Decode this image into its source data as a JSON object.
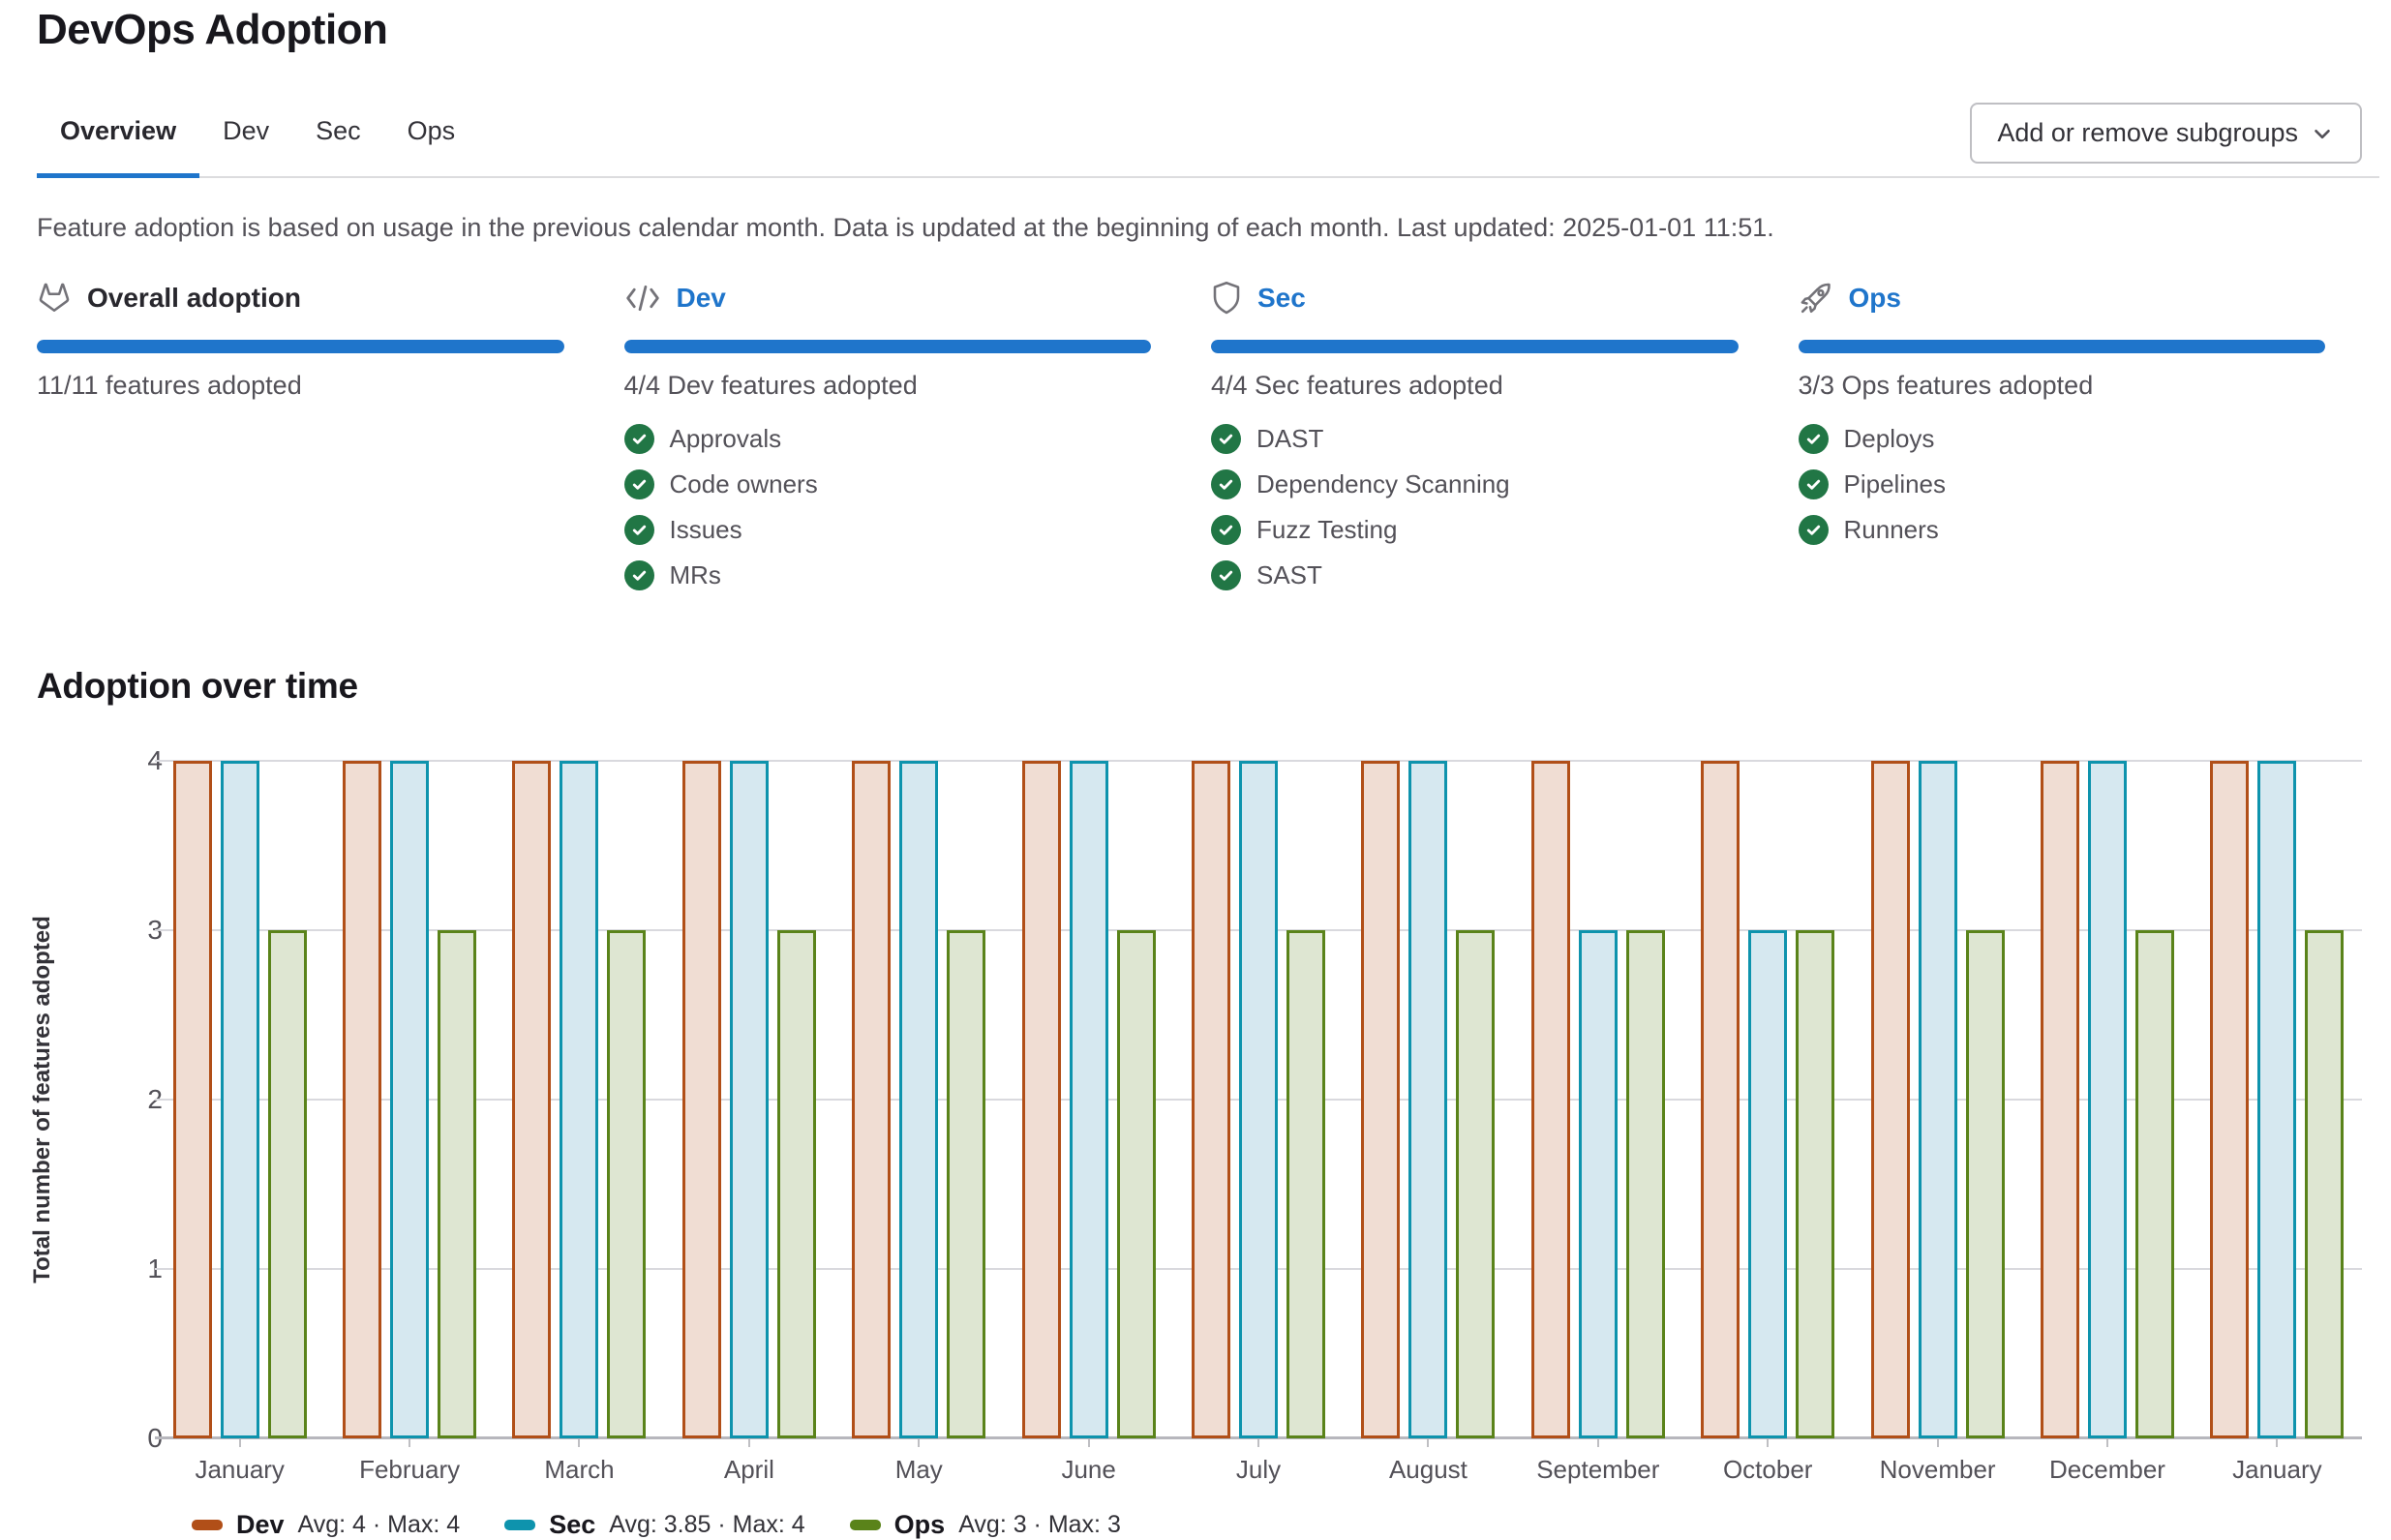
{
  "page": {
    "title": "DevOps Adoption"
  },
  "tabs": [
    {
      "label": "Overview",
      "active": true
    },
    {
      "label": "Dev",
      "active": false
    },
    {
      "label": "Sec",
      "active": false
    },
    {
      "label": "Ops",
      "active": false
    }
  ],
  "toolbar": {
    "add_remove_label": "Add or remove subgroups",
    "chevron_icon": "chevron-down-icon"
  },
  "info_text": "Feature adoption is based on usage in the previous calendar month. Data is updated at the beginning of each month. Last updated: 2025-01-01 11:51.",
  "cards": [
    {
      "title": "Overall adoption",
      "icon": "tanuki-icon",
      "link": false,
      "progress_percent": 100,
      "summary": "11/11 features adopted",
      "features": []
    },
    {
      "title": "Dev",
      "icon": "code-icon",
      "link": true,
      "progress_percent": 100,
      "summary": "4/4 Dev features adopted",
      "features": [
        "Approvals",
        "Code owners",
        "Issues",
        "MRs"
      ]
    },
    {
      "title": "Sec",
      "icon": "shield-icon",
      "link": true,
      "progress_percent": 100,
      "summary": "4/4 Sec features adopted",
      "features": [
        "DAST",
        "Dependency Scanning",
        "Fuzz Testing",
        "SAST"
      ]
    },
    {
      "title": "Ops",
      "icon": "rocket-icon",
      "link": true,
      "progress_percent": 100,
      "summary": "3/3 Ops features adopted",
      "features": [
        "Deploys",
        "Pipelines",
        "Runners"
      ]
    }
  ],
  "chart_section": {
    "title": "Adoption over time"
  },
  "chart_data": {
    "type": "bar",
    "title": "Adoption over time",
    "categories": [
      "January",
      "February",
      "March",
      "April",
      "May",
      "June",
      "July",
      "August",
      "September",
      "October",
      "November",
      "December",
      "January"
    ],
    "series": [
      {
        "name": "Dev",
        "values": [
          4,
          4,
          4,
          4,
          4,
          4,
          4,
          4,
          4,
          4,
          4,
          4,
          4
        ],
        "stroke": "#b14f18",
        "fill": "#f0ddd3",
        "legend_stats": "Avg: 4 · Max: 4"
      },
      {
        "name": "Sec",
        "values": [
          4,
          4,
          4,
          4,
          4,
          4,
          4,
          4,
          3,
          3,
          4,
          4,
          4
        ],
        "stroke": "#0e93ad",
        "fill": "#d6e8f0",
        "legend_stats": "Avg: 3.85 · Max: 4"
      },
      {
        "name": "Ops",
        "values": [
          3,
          3,
          3,
          3,
          3,
          3,
          3,
          3,
          3,
          3,
          3,
          3,
          3
        ],
        "stroke": "#5a831a",
        "fill": "#dee6d2",
        "legend_stats": "Avg: 3 · Max: 3"
      }
    ],
    "xlabel": "",
    "ylabel": "Total number of features adopted",
    "yticks": [
      0,
      1,
      2,
      3,
      4
    ],
    "ylim": [
      0,
      4
    ],
    "grid": true,
    "legend_position": "bottom"
  },
  "colors": {
    "accent_blue": "#1f75cb",
    "progress_blue": "#1f75cb",
    "check_green": "#217645",
    "icon_gray": "#737278",
    "grid_gray": "#d9d9de",
    "axis_gray": "#b7b7bd"
  }
}
